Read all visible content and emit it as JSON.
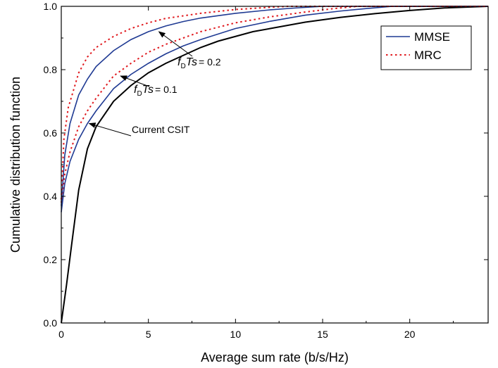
{
  "chart_data": {
    "type": "line",
    "xlabel": "Average sum rate (b/s/Hz)",
    "ylabel": "Cumulative distribution function",
    "xlim": [
      0,
      24.5
    ],
    "ylim": [
      0,
      1
    ],
    "x_ticks": [
      0,
      5,
      10,
      15,
      20
    ],
    "y_ticks": [
      0.0,
      0.2,
      0.4,
      0.6,
      0.8,
      1.0
    ],
    "x_tick_labels": [
      "0",
      "5",
      "10",
      "15",
      "20"
    ],
    "y_tick_labels": [
      "0.0",
      "0.2",
      "0.4",
      "0.6",
      "0.8",
      "1.0"
    ],
    "grid": false,
    "legend": {
      "position": "top-right",
      "entries": [
        {
          "label": "MMSE",
          "style": "solid",
          "color": "#1f3a93"
        },
        {
          "label": "MRC",
          "style": "dotted",
          "color": "#e0191e"
        }
      ]
    },
    "series": [
      {
        "color": "#000000",
        "style": "solid",
        "points": [
          [
            0,
            0
          ],
          [
            0.3,
            0.12
          ],
          [
            0.6,
            0.25
          ],
          [
            1,
            0.42
          ],
          [
            1.5,
            0.55
          ],
          [
            2,
            0.62
          ],
          [
            3,
            0.7
          ],
          [
            4,
            0.75
          ],
          [
            5,
            0.79
          ],
          [
            6,
            0.82
          ],
          [
            7,
            0.845
          ],
          [
            8,
            0.87
          ],
          [
            9,
            0.89
          ],
          [
            10,
            0.905
          ],
          [
            11,
            0.92
          ],
          [
            12,
            0.93
          ],
          [
            14,
            0.95
          ],
          [
            16,
            0.965
          ],
          [
            18,
            0.977
          ],
          [
            20,
            0.987
          ],
          [
            22,
            0.995
          ],
          [
            24.5,
            1.0
          ]
        ]
      },
      {
        "color": "#1f3a93",
        "style": "solid",
        "points": [
          [
            0,
            0.35
          ],
          [
            0.2,
            0.44
          ],
          [
            0.5,
            0.51
          ],
          [
            1,
            0.58
          ],
          [
            1.5,
            0.63
          ],
          [
            2,
            0.67
          ],
          [
            3,
            0.74
          ],
          [
            4,
            0.785
          ],
          [
            5,
            0.82
          ],
          [
            6,
            0.85
          ],
          [
            7,
            0.875
          ],
          [
            8,
            0.895
          ],
          [
            10,
            0.93
          ],
          [
            12,
            0.953
          ],
          [
            14,
            0.972
          ],
          [
            16,
            0.985
          ],
          [
            17.5,
            0.993
          ],
          [
            19,
            1.0
          ],
          [
            24.5,
            1.0
          ]
        ]
      },
      {
        "color": "#e0191e",
        "style": "dotted",
        "points": [
          [
            0,
            0.38
          ],
          [
            0.2,
            0.47
          ],
          [
            0.5,
            0.54
          ],
          [
            1,
            0.62
          ],
          [
            1.5,
            0.67
          ],
          [
            2,
            0.71
          ],
          [
            3,
            0.78
          ],
          [
            4,
            0.82
          ],
          [
            5,
            0.855
          ],
          [
            6,
            0.88
          ],
          [
            7,
            0.9
          ],
          [
            8,
            0.92
          ],
          [
            10,
            0.948
          ],
          [
            12,
            0.967
          ],
          [
            14,
            0.982
          ],
          [
            15.5,
            0.992
          ],
          [
            17,
            1.0
          ],
          [
            24.5,
            1.0
          ]
        ]
      },
      {
        "color": "#1f3a93",
        "style": "solid",
        "points": [
          [
            0,
            0.37
          ],
          [
            0.2,
            0.53
          ],
          [
            0.5,
            0.63
          ],
          [
            1,
            0.72
          ],
          [
            1.5,
            0.77
          ],
          [
            2,
            0.81
          ],
          [
            3,
            0.86
          ],
          [
            4,
            0.895
          ],
          [
            5,
            0.92
          ],
          [
            6,
            0.938
          ],
          [
            7,
            0.952
          ],
          [
            8,
            0.963
          ],
          [
            10,
            0.978
          ],
          [
            12,
            0.989
          ],
          [
            13.5,
            0.995
          ],
          [
            15,
            1.0
          ],
          [
            24.5,
            1.0
          ]
        ]
      },
      {
        "color": "#e0191e",
        "style": "dotted",
        "points": [
          [
            0,
            0.39
          ],
          [
            0.15,
            0.58
          ],
          [
            0.4,
            0.68
          ],
          [
            1,
            0.79
          ],
          [
            1.5,
            0.84
          ],
          [
            2,
            0.87
          ],
          [
            3,
            0.905
          ],
          [
            4,
            0.93
          ],
          [
            5,
            0.948
          ],
          [
            6,
            0.962
          ],
          [
            8,
            0.978
          ],
          [
            10,
            0.99
          ],
          [
            12,
            0.997
          ],
          [
            13,
            1.0
          ],
          [
            24.5,
            1.0
          ]
        ]
      }
    ],
    "annotations": [
      {
        "id": "current-csit",
        "text": "Current  CSIT",
        "arrow_to": [
          1.6,
          0.63
        ],
        "text_at": [
          4.3,
          0.6
        ]
      },
      {
        "id": "fdts-01",
        "var": "f",
        "sub": "D",
        "var2": "Ts",
        "eq": "= 0.1",
        "arrow_to": [
          3.4,
          0.78
        ],
        "text_at": [
          4.3,
          0.73
        ]
      },
      {
        "id": "fdts-02",
        "var": "f",
        "sub": "D",
        "var2": "Ts",
        "eq": "= 0.2",
        "arrow_to": [
          5.6,
          0.92
        ],
        "text_at": [
          7.0,
          0.84
        ]
      }
    ]
  }
}
